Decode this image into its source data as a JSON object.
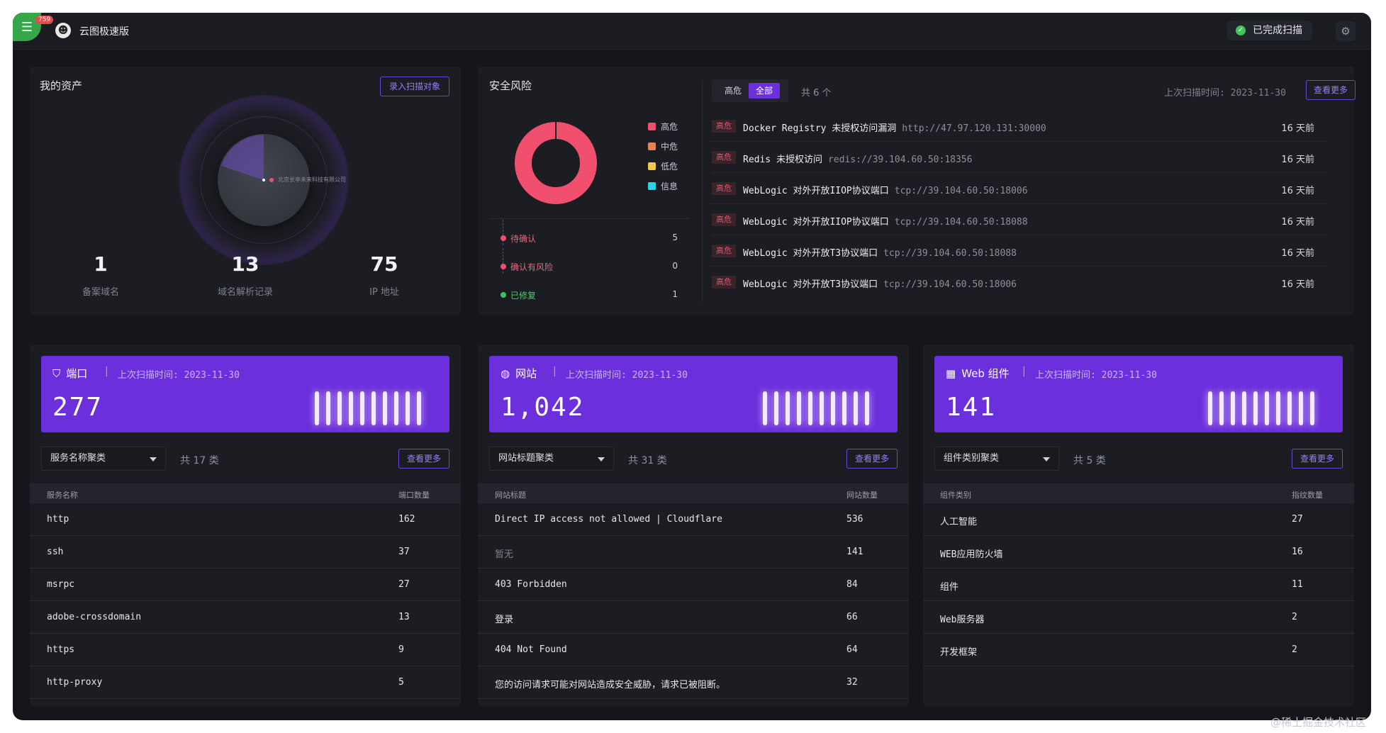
{
  "titlebar": {
    "badge": "759",
    "app_title": "云图极速版",
    "scan_status": "已完成扫描"
  },
  "assets": {
    "title": "我的资产",
    "add_button": "录入扫描对象",
    "radar_label": "北京长亭未来科技有限公司",
    "stats": [
      {
        "value": "1",
        "label": "备案域名"
      },
      {
        "value": "13",
        "label": "域名解析记录"
      },
      {
        "value": "75",
        "label": "IP 地址"
      }
    ]
  },
  "risk": {
    "title": "安全风险",
    "legend": [
      {
        "label": "高危",
        "color": "#f0506e"
      },
      {
        "label": "中危",
        "color": "#e8834f"
      },
      {
        "label": "低危",
        "color": "#f2c94c"
      },
      {
        "label": "信息",
        "color": "#2fd3e6"
      }
    ],
    "donut": {
      "high": 6,
      "medium": 0,
      "low": 0,
      "info": 0
    },
    "statuses": [
      {
        "label": "待确认",
        "count": "5",
        "color": "#f0506e"
      },
      {
        "label": "确认有风险",
        "count": "0",
        "color": "#f0506e"
      },
      {
        "label": "已修复",
        "count": "1",
        "color": "#3fc35a"
      }
    ],
    "filter_high": "高危",
    "filter_all": "全部",
    "total": "共 6 个",
    "last_scan": "上次扫描时间: 2023-11-30",
    "more_button": "查看更多",
    "vulns": [
      {
        "tag": "高危",
        "name": "Docker Registry 未授权访问漏洞",
        "url": "http://47.97.120.131:30000",
        "time": "16 天前"
      },
      {
        "tag": "高危",
        "name": "Redis 未授权访问",
        "url": "redis://39.104.60.50:18356",
        "time": "16 天前"
      },
      {
        "tag": "高危",
        "name": "WebLogic 对外开放IIOP协议端口",
        "url": "tcp://39.104.60.50:18006",
        "time": "16 天前"
      },
      {
        "tag": "高危",
        "name": "WebLogic 对外开放IIOP协议端口",
        "url": "tcp://39.104.60.50:18088",
        "time": "16 天前"
      },
      {
        "tag": "高危",
        "name": "WebLogic 对外开放T3协议端口",
        "url": "tcp://39.104.60.50:18088",
        "time": "16 天前"
      },
      {
        "tag": "高危",
        "name": "WebLogic 对外开放T3协议端口",
        "url": "tcp://39.104.60.50:18006",
        "time": "16 天前"
      }
    ]
  },
  "cards": [
    {
      "title": "端口",
      "icon": "shield-icon",
      "last_scan": "上次扫描时间: 2023-11-30",
      "count": "277",
      "select": "服务名称聚类",
      "total": "共 17 类",
      "more_button": "查看更多",
      "col1": "服务名称",
      "col2": "端口数量",
      "rows": [
        {
          "name": "http",
          "value": "162"
        },
        {
          "name": "ssh",
          "value": "37"
        },
        {
          "name": "msrpc",
          "value": "27"
        },
        {
          "name": "adobe-crossdomain",
          "value": "13"
        },
        {
          "name": "https",
          "value": "9"
        },
        {
          "name": "http-proxy",
          "value": "5"
        }
      ]
    },
    {
      "title": "网站",
      "icon": "globe-icon",
      "last_scan": "上次扫描时间: 2023-11-30",
      "count": "1,042",
      "select": "网站标题聚类",
      "total": "共 31 类",
      "more_button": "查看更多",
      "col1": "网站标题",
      "col2": "网站数量",
      "rows": [
        {
          "name": "Direct IP access not allowed | Cloudflare",
          "value": "536"
        },
        {
          "name": "暂无",
          "value": "141"
        },
        {
          "name": "403 Forbidden",
          "value": "84"
        },
        {
          "name": "登录",
          "value": "66"
        },
        {
          "name": "404 Not Found",
          "value": "64"
        },
        {
          "name": "您的访问请求可能对网站造成安全威胁，请求已被阻断。",
          "value": "32"
        }
      ]
    },
    {
      "title": "Web 组件",
      "icon": "grid-icon",
      "last_scan": "上次扫描时间: 2023-11-30",
      "count": "141",
      "select": "组件类别聚类",
      "total": "共 5 类",
      "more_button": "查看更多",
      "col1": "组件类别",
      "col2": "指纹数量",
      "rows": [
        {
          "name": "人工智能",
          "value": "27"
        },
        {
          "name": "WEB应用防火墙",
          "value": "16"
        },
        {
          "name": "组件",
          "value": "11"
        },
        {
          "name": "Web服务器",
          "value": "2"
        },
        {
          "name": "开发框架",
          "value": "2"
        }
      ]
    }
  ],
  "watermark": "@稀土掘金技术社区"
}
